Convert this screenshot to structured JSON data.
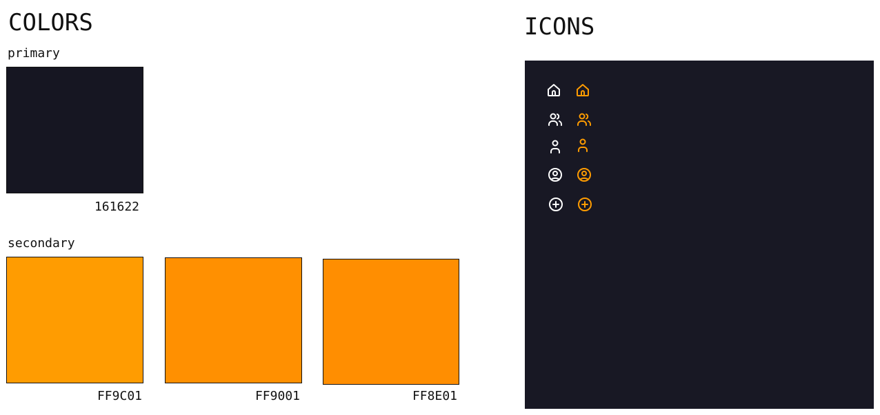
{
  "colors": {
    "heading": "COLORS",
    "primary": {
      "label": "primary",
      "swatches": [
        {
          "hex": "#161622",
          "code": "161622"
        }
      ]
    },
    "secondary": {
      "label": "secondary",
      "swatches": [
        {
          "hex": "#FF9C01",
          "code": "FF9C01"
        },
        {
          "hex": "#FF9001",
          "code": "FF9001"
        },
        {
          "hex": "#FF8E01",
          "code": "FF8E01"
        }
      ]
    }
  },
  "icons": {
    "heading": "ICONS",
    "panel_bg": "#181824",
    "white": "#FFFFFF",
    "orange": "#FF9C01",
    "rows": [
      {
        "name": "home-icon"
      },
      {
        "name": "users-icon"
      },
      {
        "name": "user-icon"
      },
      {
        "name": "user-circle-icon"
      },
      {
        "name": "plus-circle-icon"
      }
    ]
  }
}
